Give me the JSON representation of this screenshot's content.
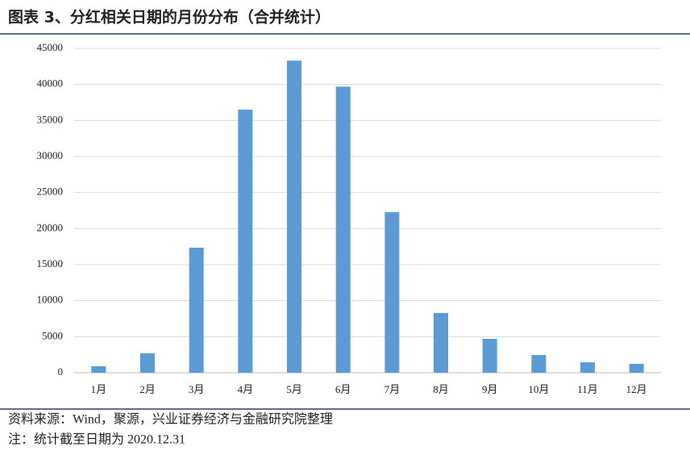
{
  "chart_data": {
    "type": "bar",
    "title": "图表 3、分红相关日期的月份分布（合并统计）",
    "categories": [
      "1月",
      "2月",
      "3月",
      "4月",
      "5月",
      "6月",
      "7月",
      "8月",
      "9月",
      "10月",
      "11月",
      "12月"
    ],
    "values": [
      900,
      2700,
      17350,
      36500,
      43300,
      39700,
      22300,
      8300,
      4700,
      2460,
      1450,
      1230
    ],
    "color": "#5b9bd5",
    "ylim": [
      0,
      45000
    ],
    "yticks": [
      0,
      5000,
      10000,
      15000,
      20000,
      25000,
      30000,
      35000,
      40000,
      45000
    ],
    "grid": true,
    "source": "资料来源：Wind，聚源，兴业证券经济与金融研究院整理",
    "note": "注：统计截至日期为 2020.12.31"
  }
}
